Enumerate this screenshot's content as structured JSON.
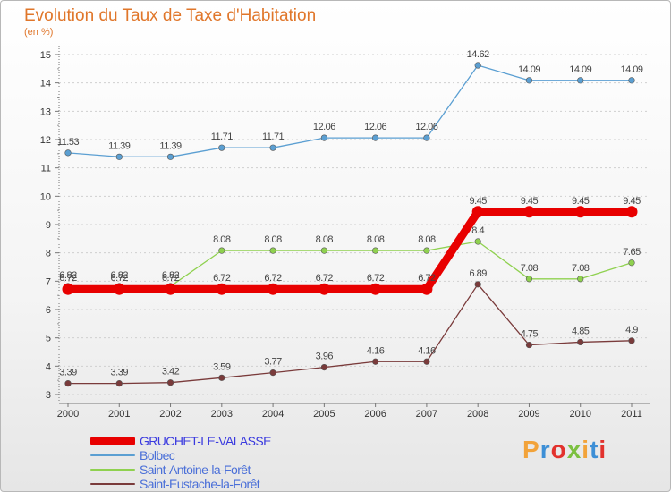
{
  "title": "Evolution du Taux de Taxe d'Habitation",
  "subtitle": "(en %)",
  "brand": {
    "text": "Proxiti",
    "colors": [
      "#f2a33a",
      "#3d8fd6",
      "#e2322d",
      "#7cc040",
      "#f2a33a",
      "#3d8fd6",
      "#e2322d"
    ]
  },
  "chart_data": {
    "type": "line",
    "categories": [
      "2000",
      "2001",
      "2002",
      "2003",
      "2004",
      "2005",
      "2006",
      "2007",
      "2008",
      "2009",
      "2010",
      "2011"
    ],
    "ylim": [
      3,
      15
    ],
    "yticks": [
      3,
      4,
      5,
      6,
      7,
      8,
      9,
      10,
      11,
      12,
      13,
      14,
      15
    ],
    "grid": "horizontal-dashed",
    "legend": "bottom-left",
    "series": [
      {
        "name": "GRUCHET-LE-VALASSE",
        "color": "#e80000",
        "emphasis": true,
        "values": [
          6.72,
          6.72,
          6.72,
          6.72,
          6.72,
          6.72,
          6.72,
          6.72,
          9.45,
          9.45,
          9.45,
          9.45
        ],
        "labels": [
          "6.72",
          "6.72",
          "6.72",
          "6.72",
          "6.72",
          "6.72",
          "6.72",
          "6.72",
          "9.45",
          "9.45",
          "9.45",
          "9.45"
        ]
      },
      {
        "name": "Bolbec",
        "color": "#5b9fd2",
        "values": [
          11.53,
          11.39,
          11.39,
          11.71,
          11.71,
          12.06,
          12.06,
          12.06,
          14.62,
          14.09,
          14.09,
          14.09
        ],
        "labels": [
          "11.53",
          "11.39",
          "11.39",
          "11.71",
          "11.71",
          "12.06",
          "12.06",
          "12.06",
          "14.62",
          "14.09",
          "14.09",
          "14.09"
        ]
      },
      {
        "name": "Saint-Antoine-la-Forêt",
        "color": "#8fd14f",
        "values": [
          6.82,
          6.82,
          6.82,
          8.08,
          8.08,
          8.08,
          8.08,
          8.08,
          8.4,
          7.08,
          7.08,
          7.65
        ],
        "labels": [
          "6.82",
          "6.82",
          "6.82",
          "8.08",
          "8.08",
          "8.08",
          "8.08",
          "8.08",
          "8.4",
          "7.08",
          "7.08",
          "7.65"
        ]
      },
      {
        "name": "Saint-Eustache-la-Forêt",
        "color": "#7a3b3b",
        "values": [
          3.39,
          3.39,
          3.42,
          3.59,
          3.77,
          3.96,
          4.16,
          4.16,
          6.89,
          4.75,
          4.85,
          4.9
        ],
        "labels": [
          "3.39",
          "3.39",
          "3.42",
          "3.59",
          "3.77",
          "3.96",
          "4.16",
          "4.16",
          "6.89",
          "4.75",
          "4.85",
          "4.9"
        ]
      }
    ]
  }
}
